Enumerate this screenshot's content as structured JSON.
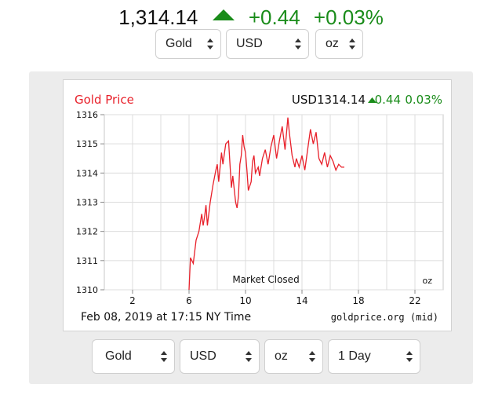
{
  "header": {
    "price": "1,314.14",
    "change": "+0.44",
    "percent": "+0.03%",
    "direction": "up",
    "up_color": "#1a8c1a"
  },
  "top_selects": {
    "metal": "Gold",
    "currency": "USD",
    "unit": "oz"
  },
  "bottom_selects": {
    "metal": "Gold",
    "currency": "USD",
    "unit": "oz",
    "period": "1 Day"
  },
  "chart_data": {
    "type": "line",
    "title": "Gold Price",
    "currency_label": "USD1314.14",
    "change_label": "0.44",
    "percent_label": "0.03%",
    "ylim": [
      1310,
      1316
    ],
    "xlim": [
      0,
      24
    ],
    "y_ticks": [
      "1316",
      "1315",
      "1314",
      "1313",
      "1312",
      "1311",
      "1310"
    ],
    "x_ticks": [
      "2",
      "6",
      "10",
      "14",
      "18",
      "22"
    ],
    "date_label": "Feb 08, 2019 at 17:15 NY Time",
    "source_label": "goldprice.org (mid)",
    "status_label": "Market Closed",
    "unit_label": "oz",
    "grid": true,
    "line_color": "#e8202a",
    "title_color": "#e8202a",
    "up_color": "#1a8c1a",
    "series": [
      {
        "x": [
          6.0,
          6.1,
          6.3,
          6.5,
          6.7,
          6.9,
          7.0,
          7.1,
          7.2,
          7.3,
          7.5,
          7.7,
          7.9,
          8.0,
          8.1,
          8.3,
          8.4,
          8.6,
          8.8,
          9.0,
          9.1,
          9.3,
          9.4,
          9.5,
          9.6,
          9.7,
          9.8,
          9.9,
          10.0,
          10.1,
          10.2,
          10.4,
          10.5,
          10.6,
          10.7,
          10.9,
          11.0,
          11.2,
          11.4,
          11.6,
          11.8,
          12.0,
          12.2,
          12.4,
          12.6,
          12.8,
          13.0,
          13.1,
          13.3,
          13.5,
          13.6,
          13.8,
          14.0,
          14.2,
          14.4,
          14.6,
          14.8,
          15.0,
          15.2,
          15.4,
          15.6,
          15.8,
          16.0,
          16.2,
          16.4,
          16.6,
          16.8,
          17.0
        ],
        "y": [
          1310.0,
          1311.1,
          1310.9,
          1311.7,
          1312.0,
          1312.6,
          1312.2,
          1312.5,
          1312.9,
          1312.2,
          1313.0,
          1313.6,
          1314.1,
          1314.3,
          1313.7,
          1314.7,
          1314.3,
          1315.0,
          1315.1,
          1313.5,
          1313.9,
          1313.0,
          1312.8,
          1313.2,
          1314.3,
          1314.6,
          1315.3,
          1314.9,
          1314.7,
          1314.1,
          1313.4,
          1313.7,
          1314.4,
          1314.6,
          1314.0,
          1314.2,
          1313.9,
          1314.5,
          1314.8,
          1314.3,
          1314.9,
          1315.3,
          1314.5,
          1315.1,
          1315.6,
          1314.8,
          1315.9,
          1315.4,
          1314.6,
          1314.2,
          1314.5,
          1314.2,
          1314.6,
          1314.1,
          1314.8,
          1315.5,
          1315.0,
          1315.4,
          1314.5,
          1314.3,
          1314.7,
          1314.2,
          1314.6,
          1314.4,
          1314.1,
          1314.3,
          1314.2,
          1314.2
        ]
      }
    ]
  }
}
